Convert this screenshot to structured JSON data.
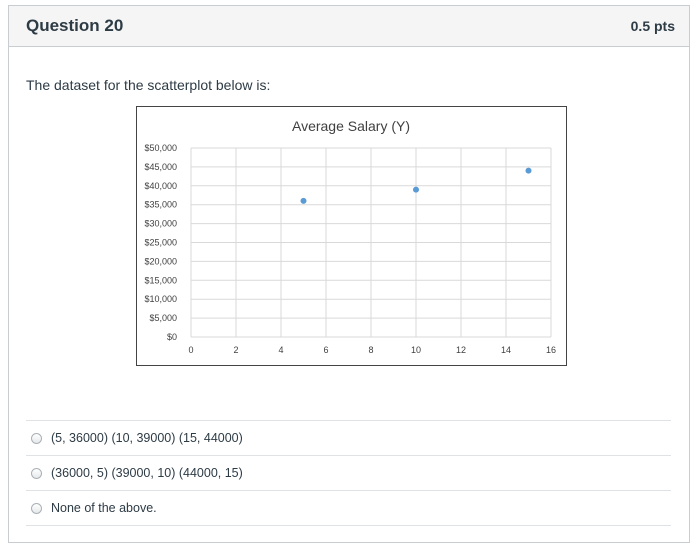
{
  "question": {
    "title": "Question 20",
    "points": "0.5 pts",
    "text": "The dataset for the scatterplot below is:"
  },
  "chart_data": {
    "type": "scatter",
    "title": "Average Salary (Y)",
    "x": [
      5,
      10,
      15
    ],
    "y": [
      36000,
      39000,
      44000
    ],
    "xlim": [
      0,
      16
    ],
    "ylim": [
      0,
      50000
    ],
    "x_ticks": [
      "0",
      "2",
      "4",
      "6",
      "8",
      "10",
      "12",
      "14",
      "16"
    ],
    "y_ticks": [
      "$0",
      "$5,000",
      "$10,000",
      "$15,000",
      "$20,000",
      "$25,000",
      "$30,000",
      "$35,000",
      "$40,000",
      "$45,000",
      "$50,000"
    ],
    "grid": true,
    "point_color": "#5b9bd5"
  },
  "answers": [
    {
      "label": "(5, 36000) (10, 39000) (15, 44000)"
    },
    {
      "label": "(36000, 5) (39000, 10) (44000, 15)"
    },
    {
      "label": "None of the above."
    }
  ]
}
